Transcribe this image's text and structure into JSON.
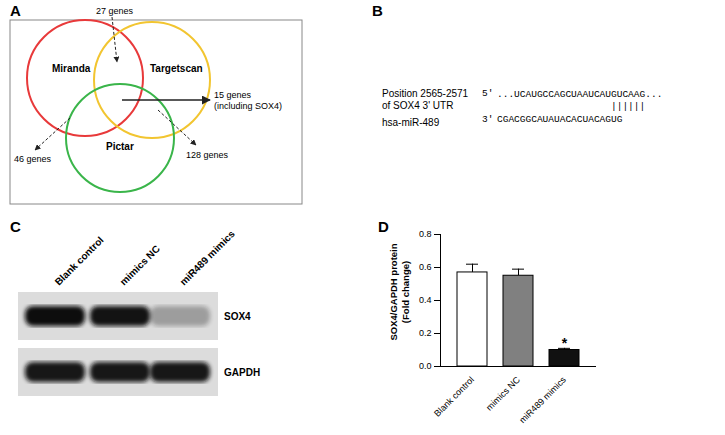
{
  "panel_labels": [
    "A",
    "B",
    "C",
    "D"
  ],
  "venn": {
    "sets": [
      {
        "name": "Miranda",
        "color": "#e8393a"
      },
      {
        "name": "Targetscan",
        "color": "#f2c530"
      },
      {
        "name": "Pictar",
        "color": "#3ab54a"
      }
    ],
    "annotations": {
      "top": "27 genes",
      "center": [
        "15 genes",
        "(including SOX4)"
      ],
      "left": "46 genes",
      "right": "128 genes"
    }
  },
  "alignment": {
    "target_label": [
      "Position 2565-2571",
      "of SOX4 3' UTR"
    ],
    "target_end": "5'",
    "target_sequence": "...UCAUGCCAGCUAAUCAUGUCAAG...",
    "pairing": "||||||",
    "mirna_label": "hsa-miR-489",
    "mirna_end": "3'",
    "mirna_sequence": "CGACGGCAUAUACACUACAGUG"
  },
  "western_blot": {
    "lanes": [
      "Blank control",
      "mimics NC",
      "miR489 mimics"
    ],
    "proteins": [
      "SOX4",
      "GAPDH"
    ]
  },
  "chart_data": {
    "type": "bar",
    "categories": [
      "Blank control",
      "mimics NC",
      "miR489 mimics"
    ],
    "values": [
      0.57,
      0.55,
      0.1
    ],
    "errors": [
      0.05,
      0.04,
      0.01
    ],
    "colors": [
      "#ffffff",
      "#808080",
      "#111111"
    ],
    "ylabel": [
      "SOX4/GAPDH protein",
      "(Fold change)"
    ],
    "ylim": [
      0,
      0.8
    ],
    "yticks": [
      {
        "value": 0,
        "label": "0.0"
      },
      {
        "value": 0.2,
        "label": "0.2"
      },
      {
        "value": 0.4,
        "label": "0.4"
      },
      {
        "value": 0.6,
        "label": "0.6"
      },
      {
        "value": 0.8,
        "label": "0.8"
      }
    ],
    "annotations": [
      {
        "category": "miR489 mimics",
        "text": "*"
      }
    ]
  }
}
